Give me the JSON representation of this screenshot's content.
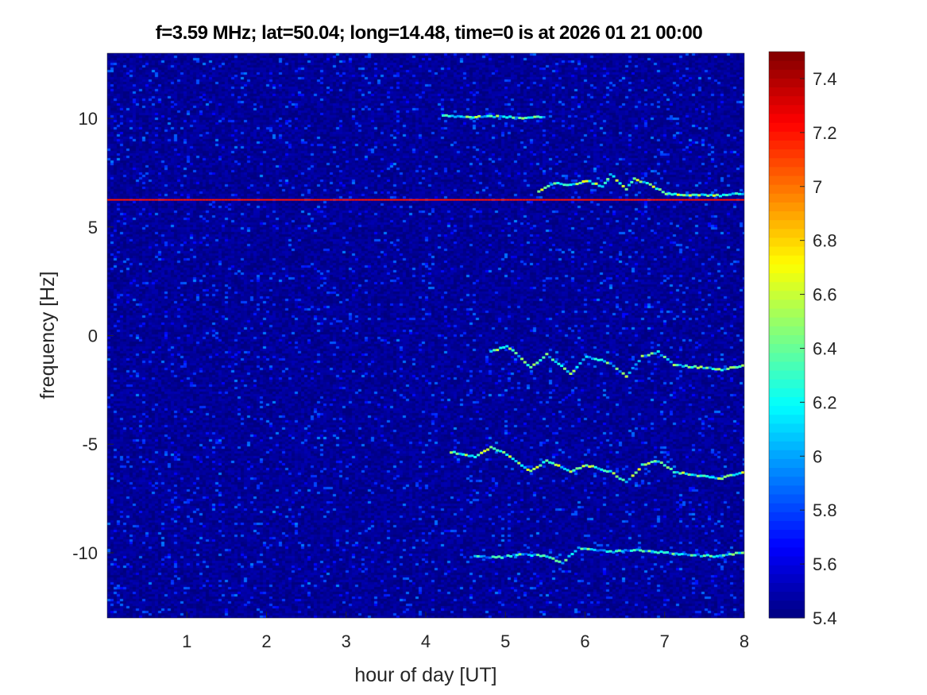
{
  "chart_data": {
    "type": "heatmap",
    "title": "f=3.59 MHz;  lat=50.04; long=14.48, time=0 is at 2026 01 21 00:00",
    "xlabel": "hour of day [UT]",
    "ylabel": "frequency [Hz]",
    "xlim": [
      0,
      8
    ],
    "ylim": [
      -13,
      13
    ],
    "xticks": [
      "1",
      "2",
      "3",
      "4",
      "5",
      "6",
      "7",
      "8"
    ],
    "yticks": [
      "10",
      "5",
      "0",
      "-5",
      "-10"
    ],
    "colormap": "jet",
    "clim": [
      5.4,
      7.5
    ],
    "colorbar_ticks": [
      "7.4",
      "7.2",
      "7",
      "6.8",
      "6.6",
      "6.4",
      "6.2",
      "6",
      "5.8",
      "5.6",
      "5.4"
    ],
    "background_level": 5.45,
    "traces": [
      {
        "points": [
          [
            0,
            6.25
          ],
          [
            8,
            6.25
          ]
        ],
        "level": 7.2
      },
      {
        "points": [
          [
            4.2,
            10.1
          ],
          [
            4.5,
            10.0
          ],
          [
            4.8,
            10.05
          ],
          [
            5.2,
            10.0
          ],
          [
            5.5,
            10.05
          ]
        ],
        "level": 6.6
      },
      {
        "points": [
          [
            5.4,
            6.6
          ],
          [
            5.6,
            7.0
          ],
          [
            5.8,
            6.9
          ],
          [
            6.0,
            7.1
          ],
          [
            6.2,
            6.8
          ],
          [
            6.3,
            7.4
          ],
          [
            6.5,
            6.7
          ],
          [
            6.6,
            7.2
          ],
          [
            6.8,
            6.9
          ],
          [
            7.0,
            6.5
          ],
          [
            7.3,
            6.45
          ],
          [
            7.6,
            6.4
          ],
          [
            8.0,
            6.5
          ]
        ],
        "level": 6.7
      },
      {
        "points": [
          [
            4.8,
            -0.8
          ],
          [
            5.0,
            -0.5
          ],
          [
            5.3,
            -1.5
          ],
          [
            5.5,
            -0.9
          ],
          [
            5.8,
            -1.8
          ],
          [
            6.0,
            -1.0
          ],
          [
            6.3,
            -1.3
          ],
          [
            6.5,
            -1.9
          ],
          [
            6.7,
            -1.0
          ],
          [
            6.9,
            -0.8
          ],
          [
            7.1,
            -1.4
          ],
          [
            7.4,
            -1.5
          ],
          [
            7.7,
            -1.6
          ],
          [
            8.0,
            -1.4
          ]
        ],
        "level": 6.6
      },
      {
        "points": [
          [
            4.3,
            -5.4
          ],
          [
            4.6,
            -5.6
          ],
          [
            4.8,
            -5.2
          ],
          [
            5.0,
            -5.5
          ],
          [
            5.3,
            -6.3
          ],
          [
            5.5,
            -5.8
          ],
          [
            5.8,
            -6.3
          ],
          [
            6.0,
            -6.0
          ],
          [
            6.3,
            -6.3
          ],
          [
            6.5,
            -6.8
          ],
          [
            6.7,
            -6.0
          ],
          [
            6.9,
            -5.8
          ],
          [
            7.1,
            -6.3
          ],
          [
            7.4,
            -6.5
          ],
          [
            7.7,
            -6.6
          ],
          [
            8.0,
            -6.3
          ]
        ],
        "level": 6.7
      },
      {
        "points": [
          [
            4.6,
            -10.2
          ],
          [
            4.9,
            -10.25
          ],
          [
            5.2,
            -10.1
          ],
          [
            5.5,
            -10.2
          ],
          [
            5.7,
            -10.5
          ],
          [
            5.9,
            -9.8
          ],
          [
            6.1,
            -9.9
          ],
          [
            6.3,
            -10.0
          ],
          [
            6.6,
            -9.9
          ],
          [
            6.9,
            -10.0
          ],
          [
            7.2,
            -10.1
          ],
          [
            7.6,
            -10.2
          ],
          [
            8.0,
            -10.0
          ]
        ],
        "level": 6.5
      }
    ]
  }
}
